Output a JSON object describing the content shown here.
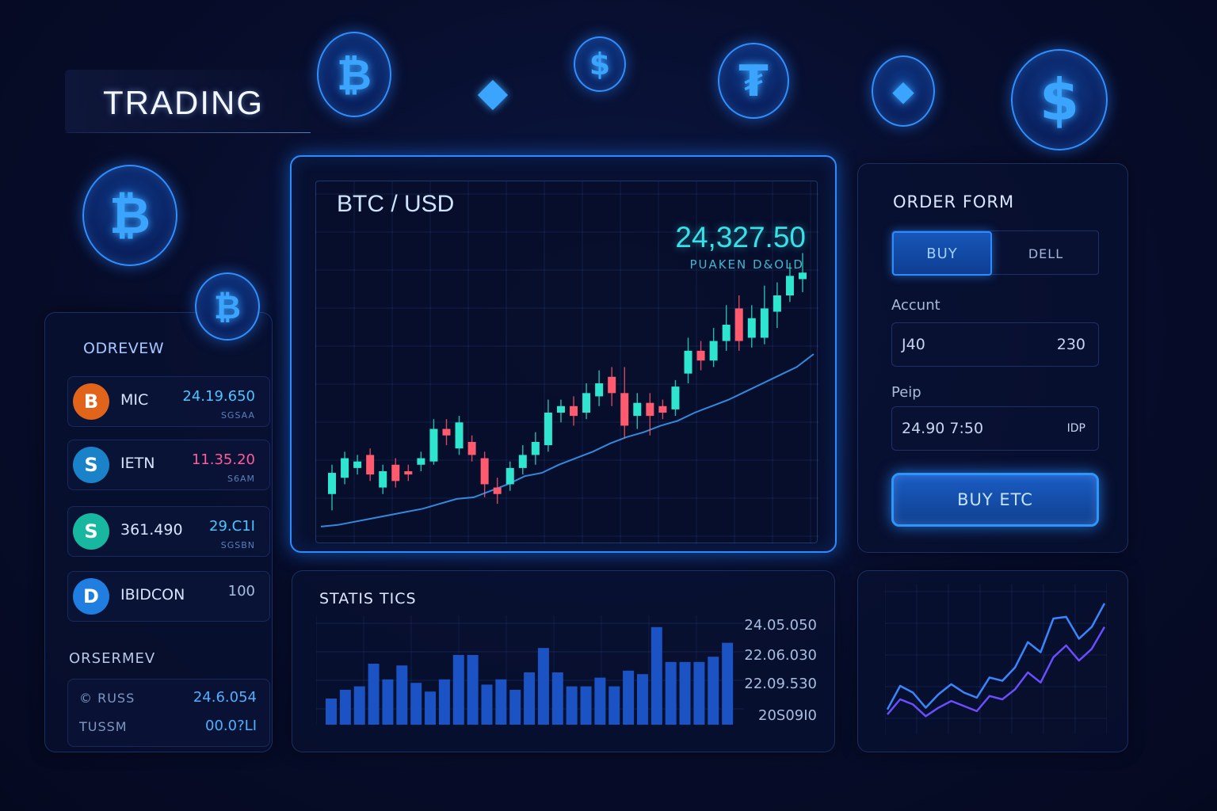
{
  "app": {
    "title": "TRADING"
  },
  "coins_decor": [
    {
      "name": "bitcoin-coin-icon",
      "glyph": "₿"
    },
    {
      "name": "ethereum-icon",
      "glyph": "◆"
    },
    {
      "name": "dollar-coin-icon",
      "glyph": "$"
    },
    {
      "name": "tether-coin-icon",
      "glyph": "₮"
    },
    {
      "name": "ethereum-coin-icon",
      "glyph": "◆"
    },
    {
      "name": "dollar-coin-large-icon",
      "glyph": "$"
    },
    {
      "name": "bitcoin-coin-left-icon",
      "glyph": "₿"
    },
    {
      "name": "bitcoin-coin-small-icon",
      "glyph": "₿"
    }
  ],
  "overview": {
    "title": "ODREVEW",
    "assets": [
      {
        "icon": "B",
        "icon_color": "#e0641a",
        "name": "MIC",
        "price": "24.19.650",
        "sub": "SGSAA",
        "price_color": "#4fc3ff"
      },
      {
        "icon": "S",
        "icon_color": "#1a82c8",
        "name": "IETN",
        "price": "11.35.20",
        "sub": "S6AM",
        "price_color": "#ff5c9a"
      },
      {
        "icon": "S",
        "icon_color": "#18b8a0",
        "name": "361.490",
        "price": "29.C1I",
        "sub": "SGSBN",
        "price_color": "#4fc3ff"
      },
      {
        "icon": "D",
        "icon_color": "#1f7ee0",
        "name": "IBIDCON",
        "price": "100",
        "sub": "",
        "price_color": "#a9bde0"
      }
    ]
  },
  "orders_summary": {
    "title": "ORSERMEV",
    "rows": [
      {
        "label": "© RUSS",
        "value": "24.6.054"
      },
      {
        "label": "TUSSM",
        "value": "00.0?LI"
      }
    ]
  },
  "main_chart": {
    "pair": "BTC / USD",
    "price": "24,327.50",
    "price_sub": "PUAKEN D&OLD"
  },
  "order_form": {
    "title": "ORDER FORM",
    "buy_tab": "BUY",
    "sell_tab": "DELL",
    "account_label": "Accunt",
    "account_left": "J40",
    "account_right": "230",
    "price_label": "Peip",
    "price_value": "24.90 7:50",
    "price_unit": "IDP",
    "submit": "BUY ETC"
  },
  "statistics": {
    "title": "STATIS TICS",
    "values": [
      "24.05.050",
      "22.06.030",
      "22.09.530",
      "20S09I0"
    ]
  },
  "colors": {
    "accent": "#2c8cff",
    "bull": "#2ee6d0",
    "bear": "#ff5a6e",
    "bar": "#1b52c4",
    "line": "#3aa0ff"
  },
  "chart_data": [
    {
      "type": "line",
      "title": "BTC / USD",
      "series": [
        {
          "values": [
            2,
            3,
            5,
            7,
            9,
            11,
            13,
            16,
            19,
            20,
            24,
            28,
            33,
            35,
            40,
            44,
            48,
            53,
            57,
            60,
            64,
            67,
            72,
            76,
            80,
            85,
            90,
            95,
            100,
            108
          ]
        }
      ],
      "candles": [
        {
          "o": 22,
          "c": 35,
          "h": 40,
          "l": 12
        },
        {
          "o": 32,
          "c": 44,
          "h": 48,
          "l": 28
        },
        {
          "o": 38,
          "c": 42,
          "h": 46,
          "l": 34
        },
        {
          "o": 46,
          "c": 34,
          "h": 50,
          "l": 30
        },
        {
          "o": 26,
          "c": 36,
          "h": 40,
          "l": 22
        },
        {
          "o": 40,
          "c": 30,
          "h": 44,
          "l": 26
        },
        {
          "o": 36,
          "c": 34,
          "h": 40,
          "l": 30
        },
        {
          "o": 40,
          "c": 44,
          "h": 48,
          "l": 36
        },
        {
          "o": 42,
          "c": 62,
          "h": 68,
          "l": 40
        },
        {
          "o": 62,
          "c": 58,
          "h": 68,
          "l": 52
        },
        {
          "o": 50,
          "c": 66,
          "h": 70,
          "l": 46
        },
        {
          "o": 54,
          "c": 46,
          "h": 58,
          "l": 42
        },
        {
          "o": 44,
          "c": 28,
          "h": 48,
          "l": 20
        },
        {
          "o": 26,
          "c": 22,
          "h": 32,
          "l": 16
        },
        {
          "o": 28,
          "c": 38,
          "h": 42,
          "l": 24
        },
        {
          "o": 38,
          "c": 46,
          "h": 52,
          "l": 34
        },
        {
          "o": 46,
          "c": 54,
          "h": 60,
          "l": 40
        },
        {
          "o": 52,
          "c": 72,
          "h": 80,
          "l": 48
        },
        {
          "o": 72,
          "c": 76,
          "h": 80,
          "l": 66
        },
        {
          "o": 76,
          "c": 70,
          "h": 82,
          "l": 64
        },
        {
          "o": 72,
          "c": 84,
          "h": 90,
          "l": 68
        },
        {
          "o": 82,
          "c": 90,
          "h": 98,
          "l": 76
        },
        {
          "o": 94,
          "c": 84,
          "h": 100,
          "l": 76
        },
        {
          "o": 84,
          "c": 64,
          "h": 100,
          "l": 56
        },
        {
          "o": 70,
          "c": 78,
          "h": 84,
          "l": 62
        },
        {
          "o": 78,
          "c": 70,
          "h": 84,
          "l": 58
        },
        {
          "o": 76,
          "c": 72,
          "h": 80,
          "l": 68
        },
        {
          "o": 74,
          "c": 88,
          "h": 92,
          "l": 70
        },
        {
          "o": 96,
          "c": 110,
          "h": 118,
          "l": 90
        },
        {
          "o": 110,
          "c": 104,
          "h": 116,
          "l": 98
        },
        {
          "o": 104,
          "c": 116,
          "h": 124,
          "l": 100
        },
        {
          "o": 116,
          "c": 126,
          "h": 138,
          "l": 110
        },
        {
          "o": 136,
          "c": 116,
          "h": 144,
          "l": 110
        },
        {
          "o": 118,
          "c": 130,
          "h": 138,
          "l": 112
        },
        {
          "o": 118,
          "c": 136,
          "h": 150,
          "l": 114
        },
        {
          "o": 134,
          "c": 144,
          "h": 152,
          "l": 124
        },
        {
          "o": 144,
          "c": 156,
          "h": 164,
          "l": 140
        },
        {
          "o": 154,
          "c": 158,
          "h": 170,
          "l": 146
        }
      ],
      "y_range": [
        0,
        180
      ],
      "grid": true
    },
    {
      "type": "bar",
      "title": "STATIS TICS",
      "values": [
        30,
        40,
        44,
        70,
        52,
        68,
        48,
        38,
        52,
        80,
        80,
        46,
        52,
        40,
        60,
        88,
        60,
        44,
        44,
        54,
        44,
        62,
        58,
        112,
        72,
        72,
        72,
        78,
        94
      ],
      "y_range": [
        0,
        120
      ]
    },
    {
      "type": "line",
      "series": [
        {
          "values": [
            20,
            48,
            40,
            22,
            38,
            50,
            40,
            34,
            58,
            54,
            70,
            100,
            88,
            128,
            130,
            104,
            118,
            146
          ]
        },
        {
          "values": [
            14,
            32,
            26,
            12,
            22,
            30,
            24,
            18,
            36,
            32,
            44,
            64,
            52,
            82,
            96,
            78,
            92,
            118
          ]
        }
      ],
      "y_range": [
        0,
        160
      ]
    }
  ]
}
